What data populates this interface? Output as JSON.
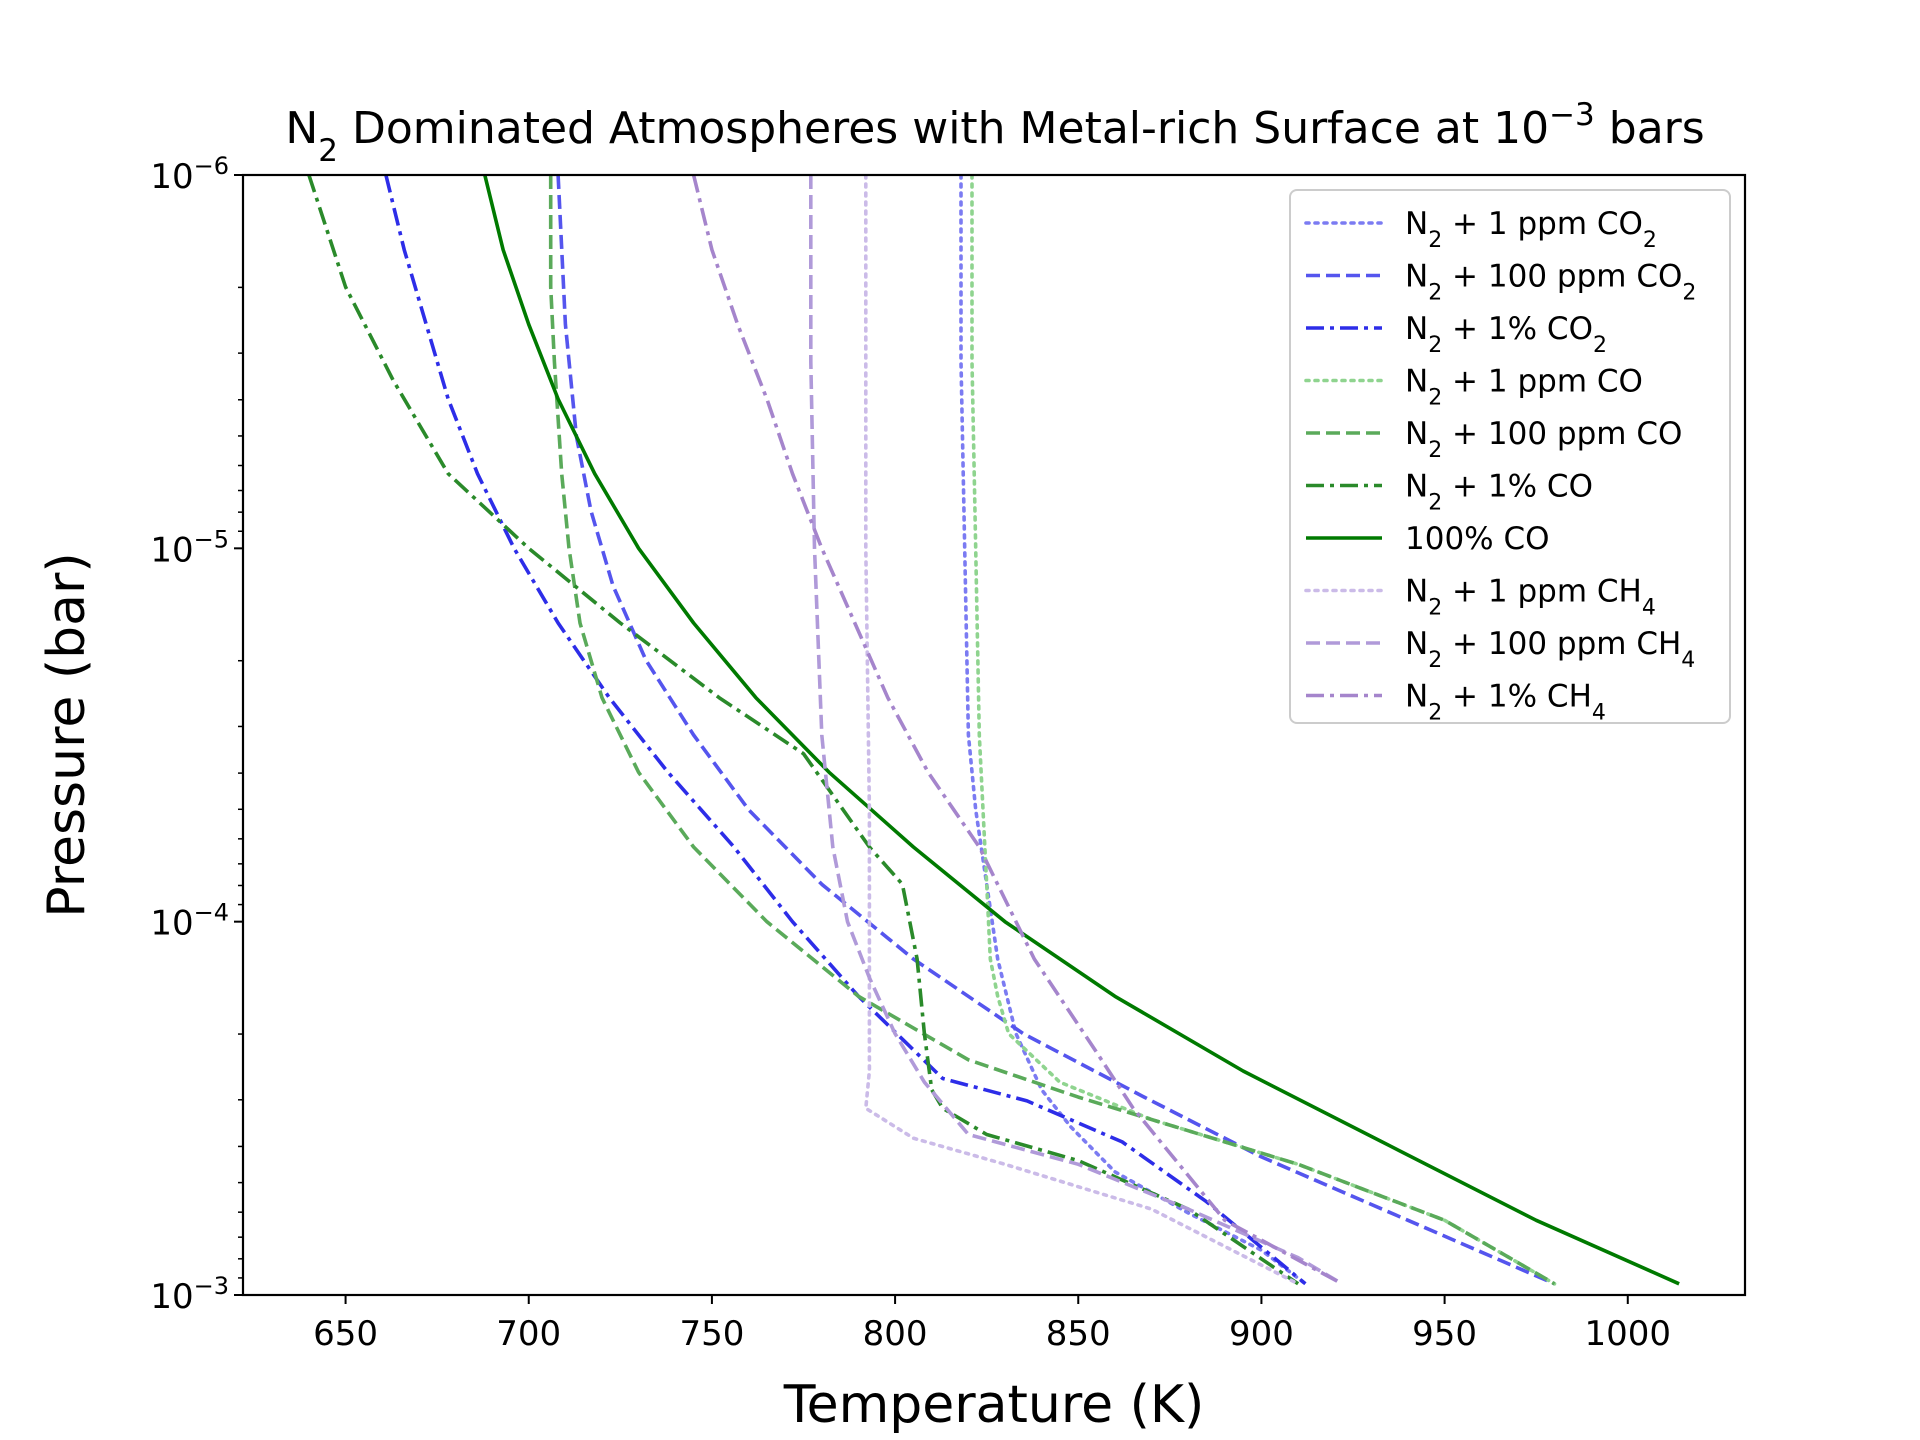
{
  "chart_data": {
    "type": "line",
    "title": "N2 Dominated Atmospheres with Metal-rich Surface at 10^-3 bars",
    "title_parts": {
      "pre": "N",
      "sub": "2",
      "mid": " Dominated Atmospheres with Metal-rich Surface at 10",
      "sup": "−3",
      "post": " bars"
    },
    "xlabel": "Temperature (K)",
    "ylabel": "Pressure (bar)",
    "xlim": [
      622,
      1032
    ],
    "ylim_exponents": [
      -6,
      -3
    ],
    "yscale": "log",
    "legend_position": "top-right",
    "xticks": [
      {
        "v": 650,
        "label": "650"
      },
      {
        "v": 700,
        "label": "700"
      },
      {
        "v": 750,
        "label": "750"
      },
      {
        "v": 800,
        "label": "800"
      },
      {
        "v": 850,
        "label": "850"
      },
      {
        "v": 900,
        "label": "900"
      },
      {
        "v": 950,
        "label": "950"
      },
      {
        "v": 1000,
        "label": "1000"
      }
    ],
    "yticks": [
      {
        "exp": -6,
        "base": "10",
        "sup": "−6"
      },
      {
        "exp": -5,
        "base": "10",
        "sup": "−5"
      },
      {
        "exp": -4,
        "base": "10",
        "sup": "−4"
      },
      {
        "exp": -3,
        "base": "10",
        "sup": "−3"
      }
    ],
    "series": [
      {
        "name": "N2 + 1 ppm CO2",
        "lg": {
          "pre": "N",
          "sub1": "2",
          "mid": " + 1 ppm CO",
          "sub2": "2"
        },
        "color": "#7b7bf2",
        "style": "dotted",
        "points": [
          [
            818,
            -6.0
          ],
          [
            818,
            -5.5
          ],
          [
            819,
            -5.0
          ],
          [
            820,
            -4.5
          ],
          [
            822,
            -4.3
          ],
          [
            825,
            -4.1
          ],
          [
            828,
            -3.9
          ],
          [
            833,
            -3.7
          ],
          [
            840,
            -3.55
          ],
          [
            848,
            -3.45
          ],
          [
            860,
            -3.33
          ],
          [
            880,
            -3.22
          ],
          [
            900,
            -3.12
          ],
          [
            912,
            -3.03
          ]
        ]
      },
      {
        "name": "N2 + 100 ppm CO2",
        "lg": {
          "pre": "N",
          "sub1": "2",
          "mid": " + 100 ppm CO",
          "sub2": "2"
        },
        "color": "#5555ee",
        "style": "dashed",
        "points": [
          [
            708,
            -6.0
          ],
          [
            710,
            -5.6
          ],
          [
            713,
            -5.3
          ],
          [
            717,
            -5.1
          ],
          [
            723,
            -4.9
          ],
          [
            732,
            -4.7
          ],
          [
            745,
            -4.5
          ],
          [
            760,
            -4.3
          ],
          [
            780,
            -4.1
          ],
          [
            805,
            -3.9
          ],
          [
            835,
            -3.7
          ],
          [
            868,
            -3.53
          ],
          [
            900,
            -3.37
          ],
          [
            940,
            -3.2
          ],
          [
            980,
            -3.03
          ]
        ]
      },
      {
        "name": "N2 + 1% CO2",
        "lg": {
          "pre": "N",
          "sub1": "2",
          "mid": " + 1% CO",
          "sub2": "2"
        },
        "color": "#2d2de8",
        "style": "dashdot",
        "points": [
          [
            661,
            -6.0
          ],
          [
            666,
            -5.8
          ],
          [
            672,
            -5.6
          ],
          [
            678,
            -5.4
          ],
          [
            686,
            -5.2
          ],
          [
            696,
            -5.0
          ],
          [
            708,
            -4.8
          ],
          [
            722,
            -4.6
          ],
          [
            738,
            -4.4
          ],
          [
            756,
            -4.2
          ],
          [
            772,
            -4.0
          ],
          [
            790,
            -3.8
          ],
          [
            813,
            -3.58
          ],
          [
            836,
            -3.52
          ],
          [
            862,
            -3.41
          ],
          [
            885,
            -3.25
          ],
          [
            912,
            -3.03
          ]
        ]
      },
      {
        "name": "N2 + 1 ppm CO",
        "lg": {
          "pre": "N",
          "sub1": "2",
          "mid": " + 1 ppm CO",
          "sub2": ""
        },
        "color": "#8fd48f",
        "style": "dotted",
        "points": [
          [
            821,
            -6.0
          ],
          [
            821,
            -5.5
          ],
          [
            822,
            -5.0
          ],
          [
            823,
            -4.5
          ],
          [
            824,
            -4.3
          ],
          [
            825,
            -4.1
          ],
          [
            826,
            -3.9
          ],
          [
            828,
            -3.8
          ],
          [
            831,
            -3.7
          ],
          [
            845,
            -3.57
          ],
          [
            870,
            -3.47
          ],
          [
            910,
            -3.35
          ],
          [
            950,
            -3.2
          ],
          [
            980,
            -3.03
          ]
        ]
      },
      {
        "name": "N2 + 100 ppm CO",
        "lg": {
          "pre": "N",
          "sub1": "2",
          "mid": " + 100 ppm CO",
          "sub2": ""
        },
        "color": "#5aaa5a",
        "style": "dashed",
        "points": [
          [
            706,
            -6.0
          ],
          [
            706,
            -5.7
          ],
          [
            707,
            -5.5
          ],
          [
            709,
            -5.2
          ],
          [
            711,
            -5.0
          ],
          [
            714,
            -4.8
          ],
          [
            720,
            -4.6
          ],
          [
            730,
            -4.4
          ],
          [
            745,
            -4.2
          ],
          [
            765,
            -4.0
          ],
          [
            790,
            -3.8
          ],
          [
            820,
            -3.63
          ],
          [
            850,
            -3.53
          ],
          [
            870,
            -3.47
          ],
          [
            910,
            -3.35
          ],
          [
            950,
            -3.2
          ],
          [
            980,
            -3.03
          ]
        ]
      },
      {
        "name": "N2 + 1% CO",
        "lg": {
          "pre": "N",
          "sub1": "2",
          "mid": " + 1% CO",
          "sub2": ""
        },
        "color": "#2a8a2a",
        "style": "dashdot",
        "points": [
          [
            640,
            -6.0
          ],
          [
            650,
            -5.7
          ],
          [
            663,
            -5.45
          ],
          [
            678,
            -5.2
          ],
          [
            700,
            -5.0
          ],
          [
            725,
            -4.8
          ],
          [
            752,
            -4.6
          ],
          [
            775,
            -4.45
          ],
          [
            793,
            -4.2
          ],
          [
            802,
            -4.1
          ],
          [
            806,
            -3.9
          ],
          [
            808,
            -3.7
          ],
          [
            810,
            -3.55
          ],
          [
            813,
            -3.5
          ],
          [
            825,
            -3.43
          ],
          [
            850,
            -3.36
          ],
          [
            880,
            -3.23
          ],
          [
            910,
            -3.03
          ]
        ]
      },
      {
        "name": "100% CO",
        "lg": {
          "pre": "",
          "sub1": "",
          "mid": "100% CO",
          "sub2": ""
        },
        "color": "#007a00",
        "style": "solid",
        "points": [
          [
            688,
            -6.0
          ],
          [
            693,
            -5.8
          ],
          [
            700,
            -5.6
          ],
          [
            708,
            -5.4
          ],
          [
            718,
            -5.2
          ],
          [
            730,
            -5.0
          ],
          [
            745,
            -4.8
          ],
          [
            762,
            -4.6
          ],
          [
            782,
            -4.4
          ],
          [
            805,
            -4.2
          ],
          [
            830,
            -4.0
          ],
          [
            860,
            -3.8
          ],
          [
            895,
            -3.6
          ],
          [
            935,
            -3.4
          ],
          [
            975,
            -3.2
          ],
          [
            1014,
            -3.03
          ]
        ]
      },
      {
        "name": "N2 + 1 ppm CH4",
        "lg": {
          "pre": "N",
          "sub1": "2",
          "mid": " + 1 ppm CH",
          "sub2": "4"
        },
        "color": "#cbbbe8",
        "style": "dotted",
        "points": [
          [
            792,
            -6.0
          ],
          [
            792,
            -5.0
          ],
          [
            793,
            -4.3
          ],
          [
            793,
            -4.0
          ],
          [
            793,
            -3.8
          ],
          [
            793,
            -3.6
          ],
          [
            792,
            -3.5
          ],
          [
            805,
            -3.42
          ],
          [
            830,
            -3.35
          ],
          [
            870,
            -3.23
          ],
          [
            910,
            -3.03
          ]
        ]
      },
      {
        "name": "N2 + 100 ppm CH4",
        "lg": {
          "pre": "N",
          "sub1": "2",
          "mid": " + 100 ppm CH",
          "sub2": "4"
        },
        "color": "#b09ad9",
        "style": "dashed",
        "points": [
          [
            777,
            -6.0
          ],
          [
            777,
            -5.5
          ],
          [
            778,
            -5.0
          ],
          [
            780,
            -4.5
          ],
          [
            783,
            -4.2
          ],
          [
            787,
            -4.0
          ],
          [
            793,
            -3.85
          ],
          [
            800,
            -3.7
          ],
          [
            808,
            -3.57
          ],
          [
            820,
            -3.43
          ],
          [
            850,
            -3.35
          ],
          [
            880,
            -3.23
          ],
          [
            910,
            -3.1
          ],
          [
            922,
            -3.03
          ]
        ]
      },
      {
        "name": "N2 + 1% CH4",
        "lg": {
          "pre": "N",
          "sub1": "2",
          "mid": " + 1% CH",
          "sub2": "4"
        },
        "color": "#a585cc",
        "style": "dashdot",
        "points": [
          [
            745,
            -6.0
          ],
          [
            750,
            -5.8
          ],
          [
            757,
            -5.6
          ],
          [
            765,
            -5.4
          ],
          [
            772,
            -5.2
          ],
          [
            780,
            -5.0
          ],
          [
            789,
            -4.8
          ],
          [
            798,
            -4.6
          ],
          [
            809,
            -4.4
          ],
          [
            823,
            -4.2
          ],
          [
            838,
            -3.9
          ],
          [
            855,
            -3.65
          ],
          [
            865,
            -3.5
          ],
          [
            890,
            -3.2
          ],
          [
            922,
            -3.03
          ]
        ]
      }
    ]
  }
}
